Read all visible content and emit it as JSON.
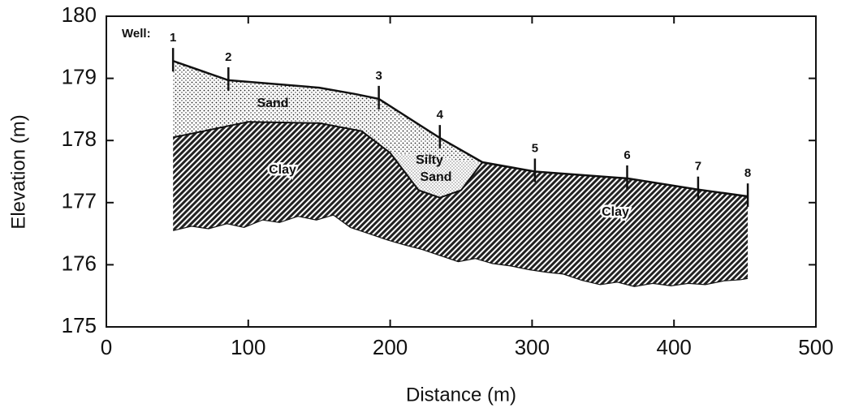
{
  "chart_data": {
    "type": "cross-section",
    "xlabel": "Distance (m)",
    "ylabel": "Elevation (m)",
    "xlim": [
      0,
      500
    ],
    "ylim": [
      175,
      180
    ],
    "xticks": [
      0,
      100,
      200,
      300,
      400,
      500
    ],
    "yticks": [
      175,
      176,
      177,
      178,
      179,
      180
    ],
    "wells": {
      "label": "Well:",
      "names": [
        "1",
        "2",
        "3",
        "4",
        "5",
        "6",
        "7",
        "8"
      ],
      "x": [
        47,
        86,
        192,
        235,
        302,
        367,
        417,
        452
      ],
      "values": [
        179.28,
        178.97,
        178.67,
        178.04,
        177.5,
        177.39,
        177.21,
        177.1
      ]
    },
    "surface": {
      "x": [
        47,
        86,
        150,
        175,
        192,
        235,
        265,
        302,
        367,
        417,
        452
      ],
      "values": [
        179.28,
        178.97,
        178.85,
        178.75,
        178.67,
        178.04,
        177.65,
        177.5,
        177.39,
        177.21,
        177.1
      ]
    },
    "sand_base": {
      "x": [
        47,
        100,
        150,
        180,
        200,
        220,
        235,
        250,
        265
      ],
      "values": [
        178.05,
        178.3,
        178.28,
        178.15,
        177.8,
        177.2,
        177.08,
        177.2,
        177.65
      ]
    },
    "clay_base": {
      "x": [
        47,
        60,
        72,
        85,
        97,
        110,
        122,
        135,
        148,
        160,
        172,
        185,
        198,
        210,
        222,
        235,
        248,
        260,
        272,
        285,
        298,
        310,
        322,
        335,
        348,
        360,
        372,
        385,
        398,
        410,
        422,
        435,
        447,
        452
      ],
      "values": [
        176.55,
        176.62,
        176.58,
        176.66,
        176.6,
        176.72,
        176.68,
        176.78,
        176.72,
        176.8,
        176.6,
        176.5,
        176.4,
        176.32,
        176.25,
        176.15,
        176.05,
        176.1,
        176.02,
        175.98,
        175.92,
        175.88,
        175.85,
        175.75,
        175.68,
        175.72,
        175.65,
        175.7,
        175.66,
        175.7,
        175.68,
        175.74,
        175.76,
        175.78
      ]
    },
    "units": {
      "sand": "Sand",
      "silty_sand": [
        "Silty",
        "Sand"
      ],
      "clay": "Clay"
    }
  }
}
